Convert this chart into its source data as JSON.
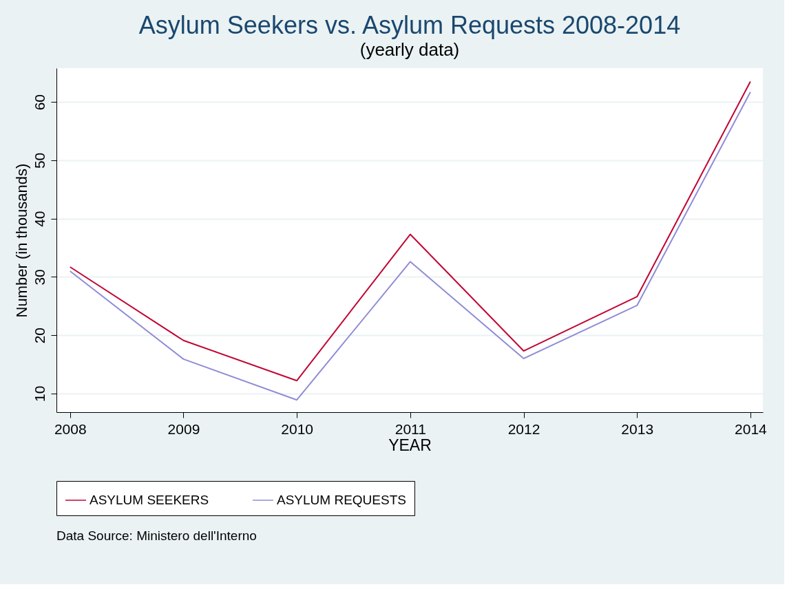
{
  "chart_data": {
    "type": "line",
    "title": "Asylum Seekers vs. Asylum Requests 2008-2014",
    "subtitle": "(yearly data)",
    "xlabel": "YEAR",
    "ylabel": "Number (in thousands)",
    "x": [
      2008,
      2009,
      2010,
      2011,
      2012,
      2013,
      2014
    ],
    "series": [
      {
        "name": "ASYLUM SEEKERS",
        "color": "#c10534",
        "values": [
          31.7,
          19.1,
          12.2,
          37.3,
          17.3,
          26.6,
          63.5
        ]
      },
      {
        "name": "ASYLUM REQUESTS",
        "color": "#8e8cd7",
        "values": [
          31.0,
          15.9,
          8.9,
          32.6,
          16.0,
          25.1,
          61.7
        ]
      }
    ],
    "xlim": [
      2007.88,
      2014.11
    ],
    "xticks": [
      2008,
      2009,
      2010,
      2011,
      2012,
      2013,
      2014
    ],
    "ylim": [
      6.8,
      65.8
    ],
    "yticks": [
      10,
      20,
      30,
      40,
      50,
      60
    ],
    "grid": "y",
    "legend": "bottom",
    "marker": "none",
    "line_style": "solid",
    "annotations": [
      "Data Source: Ministero dell'Interno"
    ]
  }
}
